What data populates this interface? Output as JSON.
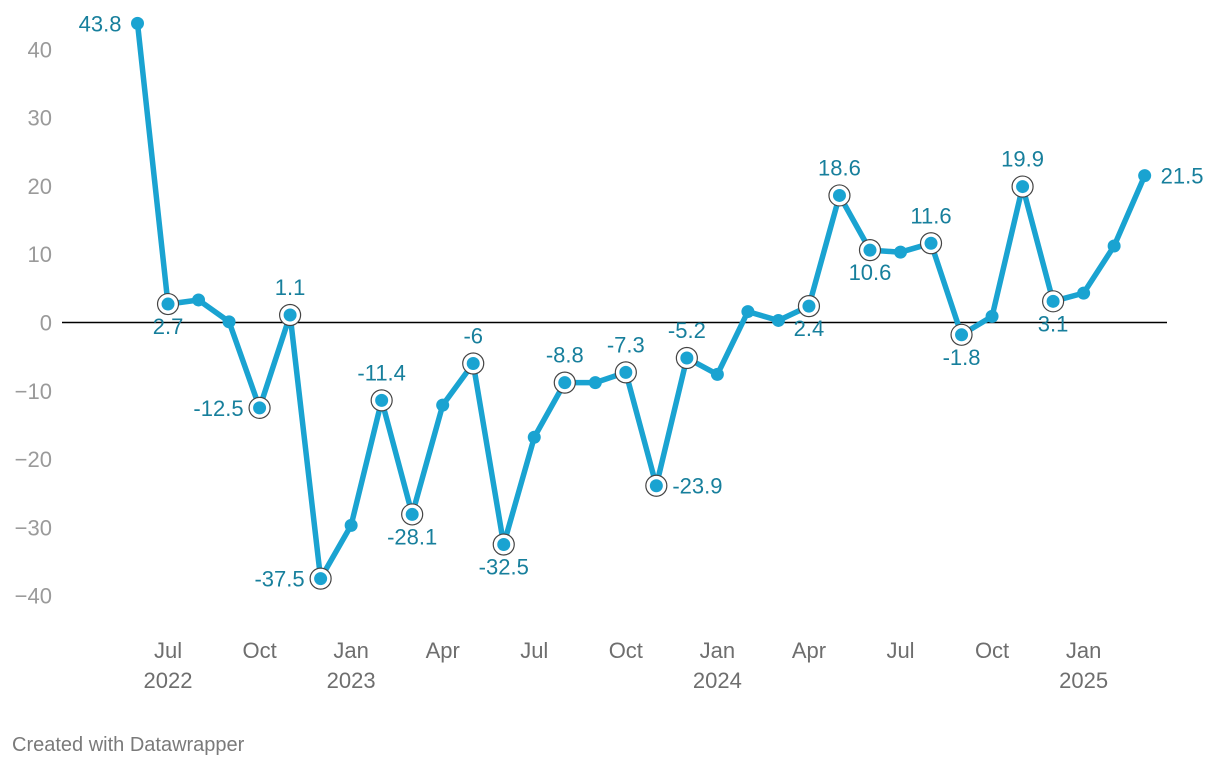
{
  "chart_data": {
    "type": "line",
    "title": "",
    "xlabel": "",
    "ylabel": "",
    "ylim": [
      -45,
      45
    ],
    "grid": false,
    "zero_line": true,
    "colors": {
      "line": "#1aa3d1",
      "label": "#177f9c",
      "tick": "#9a9a9a",
      "zero": "#000000"
    },
    "yticks": [
      40,
      30,
      20,
      10,
      0,
      -10,
      -20,
      -30,
      -40
    ],
    "ytick_labels": [
      "40",
      "30",
      "20",
      "10",
      "0",
      "−10",
      "−20",
      "−30",
      "−40"
    ],
    "xticks": [
      {
        "x": "2022-07",
        "month": "Jul",
        "year": "2022"
      },
      {
        "x": "2022-10",
        "month": "Oct",
        "year": ""
      },
      {
        "x": "2023-01",
        "month": "Jan",
        "year": "2023"
      },
      {
        "x": "2023-04",
        "month": "Apr",
        "year": ""
      },
      {
        "x": "2023-07",
        "month": "Jul",
        "year": ""
      },
      {
        "x": "2023-10",
        "month": "Oct",
        "year": ""
      },
      {
        "x": "2024-01",
        "month": "Jan",
        "year": "2024"
      },
      {
        "x": "2024-04",
        "month": "Apr",
        "year": ""
      },
      {
        "x": "2024-07",
        "month": "Jul",
        "year": ""
      },
      {
        "x": "2024-10",
        "month": "Oct",
        "year": ""
      },
      {
        "x": "2025-01",
        "month": "Jan",
        "year": "2025"
      }
    ],
    "series": [
      {
        "points": [
          {
            "x": "2022-06",
            "y": 43.8,
            "label": "43.8",
            "pos": "left",
            "ring": false
          },
          {
            "x": "2022-07",
            "y": 2.7,
            "label": "2.7",
            "pos": "below",
            "ring": true
          },
          {
            "x": "2022-08",
            "y": 3.3
          },
          {
            "x": "2022-09",
            "y": 0.1
          },
          {
            "x": "2022-10",
            "y": -12.5,
            "label": "-12.5",
            "pos": "left",
            "ring": true
          },
          {
            "x": "2022-11",
            "y": 1.1,
            "label": "1.1",
            "pos": "above",
            "ring": true
          },
          {
            "x": "2022-12",
            "y": -37.5,
            "label": "-37.5",
            "pos": "left",
            "ring": true
          },
          {
            "x": "2023-01",
            "y": -29.7
          },
          {
            "x": "2023-02",
            "y": -11.4,
            "label": "-11.4",
            "pos": "above",
            "ring": true
          },
          {
            "x": "2023-03",
            "y": -28.1,
            "label": "-28.1",
            "pos": "below",
            "ring": true
          },
          {
            "x": "2023-04",
            "y": -12.1
          },
          {
            "x": "2023-05",
            "y": -6,
            "label": "-6",
            "pos": "above",
            "ring": true
          },
          {
            "x": "2023-06",
            "y": -32.5,
            "label": "-32.5",
            "pos": "below",
            "ring": true
          },
          {
            "x": "2023-07",
            "y": -16.8
          },
          {
            "x": "2023-08",
            "y": -8.8,
            "label": "-8.8",
            "pos": "above",
            "ring": true
          },
          {
            "x": "2023-09",
            "y": -8.8
          },
          {
            "x": "2023-10",
            "y": -7.3,
            "label": "-7.3",
            "pos": "above",
            "ring": true
          },
          {
            "x": "2023-11",
            "y": -23.9,
            "label": "-23.9",
            "pos": "right",
            "ring": true
          },
          {
            "x": "2023-12",
            "y": -5.2,
            "label": "-5.2",
            "pos": "above",
            "ring": true
          },
          {
            "x": "2024-01",
            "y": -7.6
          },
          {
            "x": "2024-02",
            "y": 1.6
          },
          {
            "x": "2024-03",
            "y": 0.3
          },
          {
            "x": "2024-04",
            "y": 2.4,
            "label": "2.4",
            "pos": "below",
            "ring": true
          },
          {
            "x": "2024-05",
            "y": 18.6,
            "label": "18.6",
            "pos": "above",
            "ring": true
          },
          {
            "x": "2024-06",
            "y": 10.6,
            "label": "10.6",
            "pos": "below",
            "ring": true
          },
          {
            "x": "2024-07",
            "y": 10.3
          },
          {
            "x": "2024-08",
            "y": 11.6,
            "label": "11.6",
            "pos": "above",
            "ring": true
          },
          {
            "x": "2024-09",
            "y": -1.8,
            "label": "-1.8",
            "pos": "below",
            "ring": true
          },
          {
            "x": "2024-10",
            "y": 0.9
          },
          {
            "x": "2024-11",
            "y": 19.9,
            "label": "19.9",
            "pos": "above",
            "ring": true
          },
          {
            "x": "2024-12",
            "y": 3.1,
            "label": "3.1",
            "pos": "below",
            "ring": true
          },
          {
            "x": "2025-01",
            "y": 4.3
          },
          {
            "x": "2025-02",
            "y": 11.2
          },
          {
            "x": "2025-03",
            "y": 21.5,
            "label": "21.5",
            "pos": "right",
            "ring": false
          }
        ]
      }
    ]
  },
  "credit": "Created with Datawrapper"
}
